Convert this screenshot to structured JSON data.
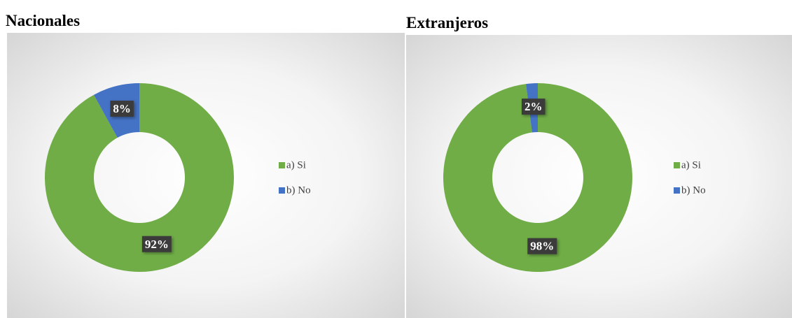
{
  "chart_data": [
    {
      "type": "donut",
      "title": "Nacionales",
      "categories": [
        "a) Si",
        "b) No"
      ],
      "values": [
        92,
        8
      ],
      "value_labels": [
        "92%",
        "8%"
      ],
      "colors": [
        "#70ad47",
        "#4472c4"
      ],
      "legend": "right"
    },
    {
      "type": "donut",
      "title": "Extranjeros",
      "categories": [
        "a) Si",
        "b) No"
      ],
      "values": [
        98,
        2
      ],
      "value_labels": [
        "98%",
        "2%"
      ],
      "colors": [
        "#70ad47",
        "#4472c4"
      ],
      "legend": "right"
    }
  ]
}
